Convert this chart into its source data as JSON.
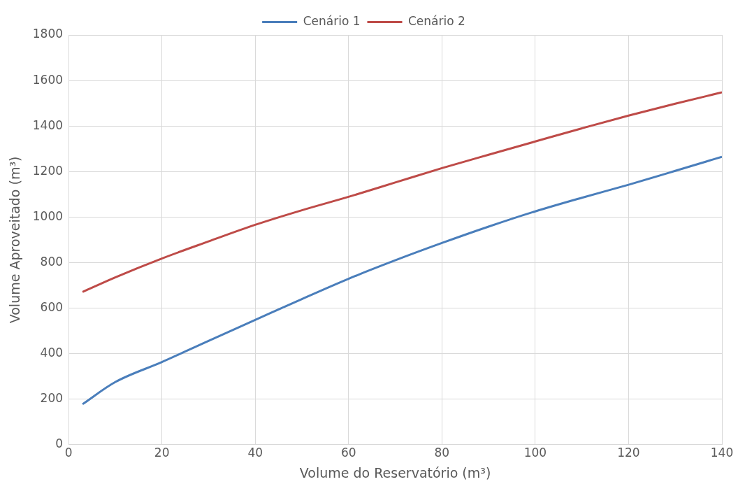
{
  "chart_data": {
    "type": "line",
    "xlabel": "Volume do Reservatório (m³)",
    "ylabel": "Volume Aproveitado (m³)",
    "xlim": [
      0,
      140
    ],
    "xticks": [
      0,
      20,
      40,
      60,
      80,
      100,
      120,
      140
    ],
    "ylim": [
      0,
      1800
    ],
    "yticks": [
      0,
      200,
      400,
      600,
      800,
      1000,
      1200,
      1400,
      1600,
      1800
    ],
    "grid": true,
    "legend": "top",
    "marker": "none",
    "line_style": "solid",
    "series": [
      {
        "name": "Cenário 1",
        "color": "#4a7ebb",
        "x": [
          3,
          10,
          20,
          30,
          40,
          50,
          60,
          70,
          80,
          90,
          100,
          110,
          120,
          130,
          140
        ],
        "values": [
          178,
          275,
          363,
          456,
          548,
          640,
          729,
          810,
          886,
          958,
          1025,
          1085,
          1142,
          1203,
          1265
        ]
      },
      {
        "name": "Cenário 2",
        "color": "#be4b48",
        "x": [
          3,
          10,
          20,
          30,
          40,
          50,
          60,
          70,
          80,
          90,
          100,
          110,
          120,
          130,
          140
        ],
        "values": [
          671,
          735,
          818,
          893,
          966,
          1030,
          1089,
          1152,
          1215,
          1274,
          1332,
          1390,
          1446,
          1498,
          1548
        ]
      }
    ]
  }
}
